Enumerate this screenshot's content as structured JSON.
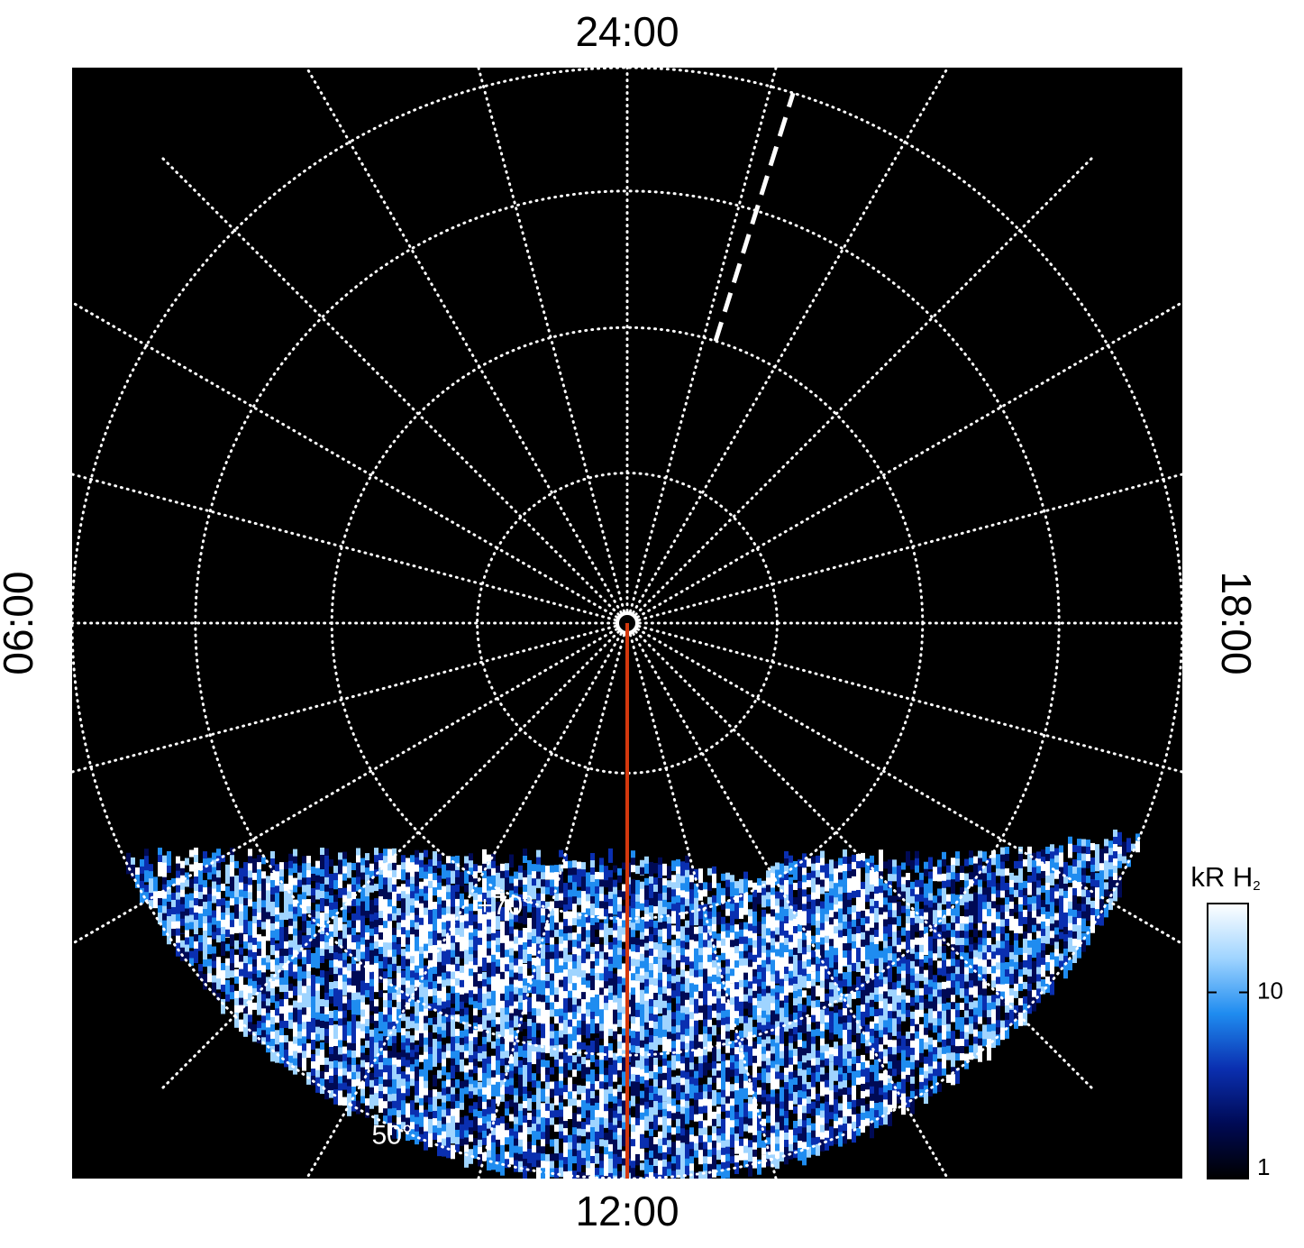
{
  "chart_data": {
    "type": "polar-image",
    "projection": "orthographic",
    "rlim": [
      90,
      50
    ],
    "xticks": [
      {
        "value": 24,
        "label": "24:00"
      },
      {
        "value": 6,
        "label": "06:00"
      },
      {
        "value": 12,
        "label": "12:00"
      },
      {
        "value": 18,
        "label": "18:00"
      }
    ],
    "meridians": [
      0,
      1,
      2,
      3,
      4,
      5,
      6,
      7,
      8,
      9,
      10,
      11,
      12,
      13,
      14,
      15,
      16,
      17,
      18,
      19,
      20,
      21,
      22,
      23
    ],
    "parallels": [
      {
        "value": 80,
        "label": null
      },
      {
        "value": 70,
        "label": "+70°"
      },
      {
        "value": 60,
        "label": null
      },
      {
        "value": 50,
        "label": "50°"
      }
    ],
    "lines": [
      {
        "time": 12,
        "lat": [
          90,
          50
        ],
        "color": "#d4380d",
        "style": "solid"
      },
      {
        "time": 22.84,
        "lat": [
          70,
          50
        ],
        "color": "#ffffff",
        "style": "dashed"
      }
    ],
    "colorbar": {
      "label": "kR H",
      "label_sub": "2",
      "log": true,
      "lim": [
        1,
        30
      ],
      "ticks": [
        1,
        10
      ],
      "colors": [
        "#000000",
        "#000a55",
        "#0a2fb0",
        "#1f8cf0",
        "#9fd4ff",
        "#ffffff"
      ]
    }
  }
}
